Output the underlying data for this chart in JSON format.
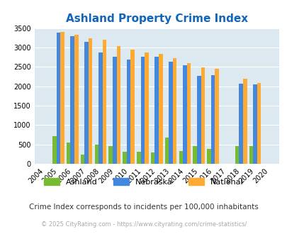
{
  "title": "Ashland Property Crime Index",
  "years": [
    2004,
    2005,
    2006,
    2007,
    2008,
    2009,
    2010,
    2011,
    2012,
    2013,
    2014,
    2015,
    2016,
    2017,
    2018,
    2019,
    2020
  ],
  "ashland": [
    0,
    720,
    540,
    240,
    490,
    450,
    310,
    310,
    295,
    670,
    330,
    450,
    390,
    0,
    450,
    450,
    0
  ],
  "nebraska": [
    0,
    3390,
    3300,
    3140,
    2870,
    2760,
    2680,
    2760,
    2760,
    2640,
    2540,
    2260,
    2280,
    0,
    2060,
    2050,
    0
  ],
  "national": [
    0,
    3400,
    3320,
    3230,
    3200,
    3040,
    2940,
    2880,
    2840,
    2720,
    2590,
    2490,
    2450,
    0,
    2200,
    2090,
    0
  ],
  "ashland_color": "#77bb33",
  "nebraska_color": "#4488dd",
  "national_color": "#ffaa33",
  "bg_color": "#dce9f0",
  "grid_color": "#ffffff",
  "title_color": "#1166bb",
  "ylabel_max": 3500,
  "subtitle": "Crime Index corresponds to incidents per 100,000 inhabitants",
  "copyright": "© 2025 CityRating.com - https://www.cityrating.com/crime-statistics/"
}
